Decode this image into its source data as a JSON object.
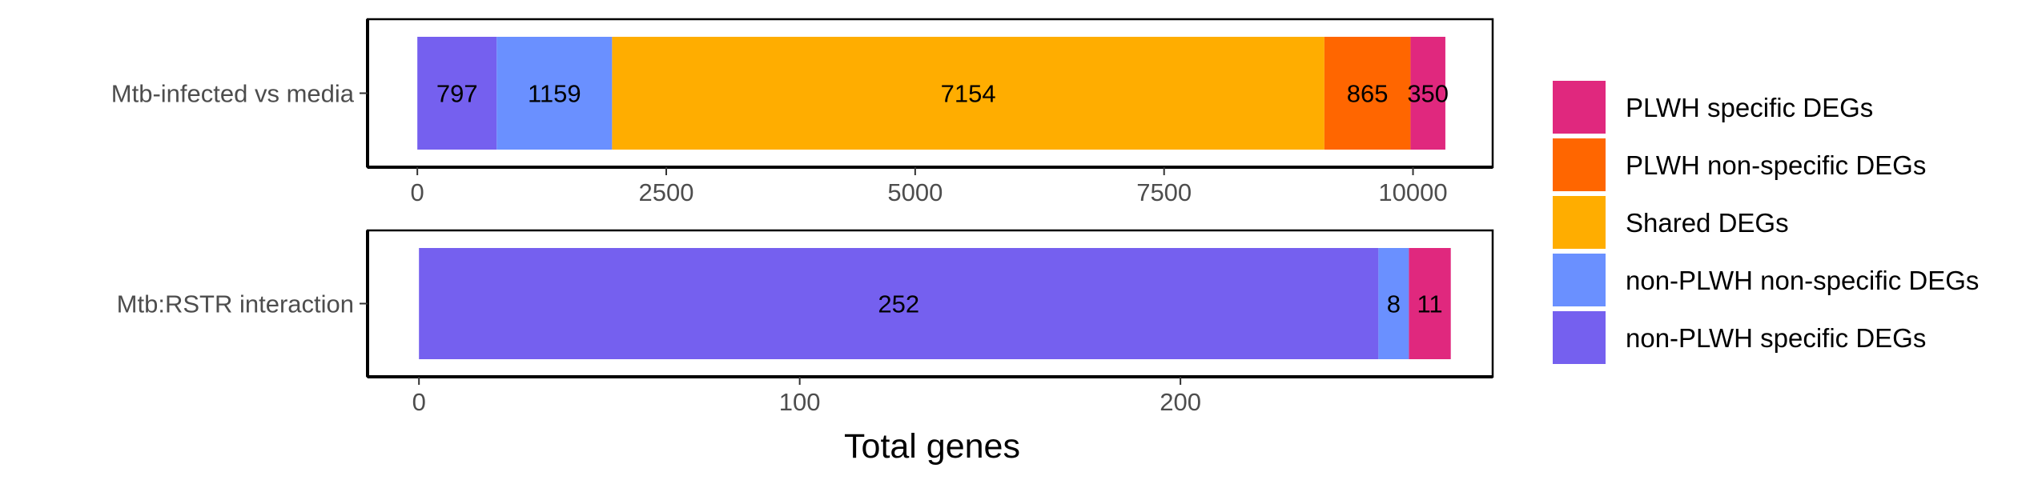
{
  "chart_data": {
    "type": "bar",
    "orientation": "horizontal",
    "stacked": true,
    "xlabel": "Total genes",
    "legend_position": "right",
    "grid": false,
    "colors": {
      "PLWH specific DEGs": "#e0287e",
      "PLWH non-specific DEGs": "#ff6600",
      "Shared DEGs": "#ffad00",
      "non-PLWH non-specific DEGs": "#6a90ff",
      "non-PLWH specific DEGs": "#7560ef"
    },
    "legend": [
      "PLWH specific DEGs",
      "PLWH non-specific DEGs",
      "Shared DEGs",
      "non-PLWH non-specific DEGs",
      "non-PLWH specific DEGs"
    ],
    "panels": [
      {
        "category": "Mtb-infected vs media",
        "xlim": [
          -500,
          10800
        ],
        "ticks": [
          0,
          2500,
          5000,
          7500,
          10000
        ],
        "tick_labels": [
          "0",
          "2500",
          "5000",
          "7500",
          "10000"
        ],
        "segments": [
          {
            "group": "non-PLWH specific DEGs",
            "value": 797,
            "label": "797"
          },
          {
            "group": "non-PLWH non-specific DEGs",
            "value": 1159,
            "label": "1159"
          },
          {
            "group": "Shared DEGs",
            "value": 7154,
            "label": "7154"
          },
          {
            "group": "PLWH non-specific DEGs",
            "value": 865,
            "label": "865"
          },
          {
            "group": "PLWH specific DEGs",
            "value": 350,
            "label": "350"
          }
        ]
      },
      {
        "category": "Mtb:RSTR interaction",
        "xlim": [
          -13.5,
          282
        ],
        "ticks": [
          0,
          100,
          200
        ],
        "tick_labels": [
          "0",
          "100",
          "200"
        ],
        "segments": [
          {
            "group": "non-PLWH specific DEGs",
            "value": 252,
            "label": "252"
          },
          {
            "group": "non-PLWH non-specific DEGs",
            "value": 8,
            "label": "8"
          },
          {
            "group": "PLWH specific DEGs",
            "value": 11,
            "label": "11"
          }
        ]
      }
    ]
  }
}
